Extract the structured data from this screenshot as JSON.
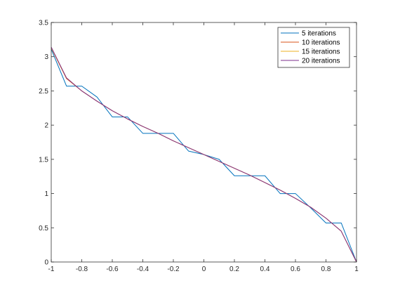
{
  "chart_data": {
    "type": "line",
    "title": "",
    "xlabel": "",
    "ylabel": "",
    "xlim": [
      -1,
      1
    ],
    "ylim": [
      0,
      3.5
    ],
    "xticks": [
      "-1",
      "-0.8",
      "-0.6",
      "-0.4",
      "-0.2",
      "0",
      "0.2",
      "0.4",
      "0.6",
      "0.8",
      "1"
    ],
    "yticks": [
      "0",
      "0.5",
      "1",
      "1.5",
      "2",
      "2.5",
      "3",
      "3.5"
    ],
    "grid": false,
    "legend_position": "top-right",
    "series": [
      {
        "name": "5 iterations",
        "color": "#0072BD",
        "x": [
          -1,
          -0.9,
          -0.8,
          -0.7,
          -0.6,
          -0.5,
          -0.4,
          -0.3,
          -0.2,
          -0.1,
          0,
          0.1,
          0.2,
          0.3,
          0.4,
          0.5,
          0.6,
          0.7,
          0.8,
          0.9,
          1
        ],
        "y": [
          3.11,
          2.57,
          2.57,
          2.41,
          2.12,
          2.12,
          1.88,
          1.88,
          1.88,
          1.62,
          1.57,
          1.5,
          1.26,
          1.26,
          1.26,
          1.0,
          1.0,
          0.79,
          0.57,
          0.57,
          0.0
        ]
      },
      {
        "name": "10 iterations",
        "color": "#D95319",
        "x": [
          -1,
          -0.9,
          -0.8,
          -0.7,
          -0.6,
          -0.5,
          -0.4,
          -0.3,
          -0.2,
          -0.1,
          0,
          0.1,
          0.2,
          0.3,
          0.4,
          0.5,
          0.6,
          0.7,
          0.8,
          0.9,
          1
        ],
        "y": [
          3.13,
          2.68,
          2.5,
          2.35,
          2.21,
          2.09,
          1.98,
          1.88,
          1.77,
          1.67,
          1.57,
          1.47,
          1.37,
          1.27,
          1.16,
          1.05,
          0.93,
          0.8,
          0.64,
          0.45,
          0.0
        ]
      },
      {
        "name": "15 iterations",
        "color": "#EDB120",
        "x": [
          -1,
          -0.9,
          -0.8,
          -0.7,
          -0.6,
          -0.5,
          -0.4,
          -0.3,
          -0.2,
          -0.1,
          0,
          0.1,
          0.2,
          0.3,
          0.4,
          0.5,
          0.6,
          0.7,
          0.8,
          0.9,
          1
        ],
        "y": [
          3.13,
          2.69,
          2.5,
          2.35,
          2.21,
          2.09,
          1.98,
          1.88,
          1.77,
          1.67,
          1.57,
          1.47,
          1.37,
          1.27,
          1.16,
          1.05,
          0.93,
          0.8,
          0.64,
          0.45,
          0.0
        ]
      },
      {
        "name": "20 iterations",
        "color": "#7E2F8E",
        "x": [
          -1,
          -0.9,
          -0.8,
          -0.7,
          -0.6,
          -0.5,
          -0.4,
          -0.3,
          -0.2,
          -0.1,
          0,
          0.1,
          0.2,
          0.3,
          0.4,
          0.5,
          0.6,
          0.7,
          0.8,
          0.9,
          1
        ],
        "y": [
          3.14,
          2.69,
          2.5,
          2.35,
          2.21,
          2.09,
          1.98,
          1.88,
          1.77,
          1.67,
          1.57,
          1.47,
          1.37,
          1.27,
          1.16,
          1.05,
          0.93,
          0.8,
          0.64,
          0.45,
          0.0
        ]
      }
    ]
  }
}
